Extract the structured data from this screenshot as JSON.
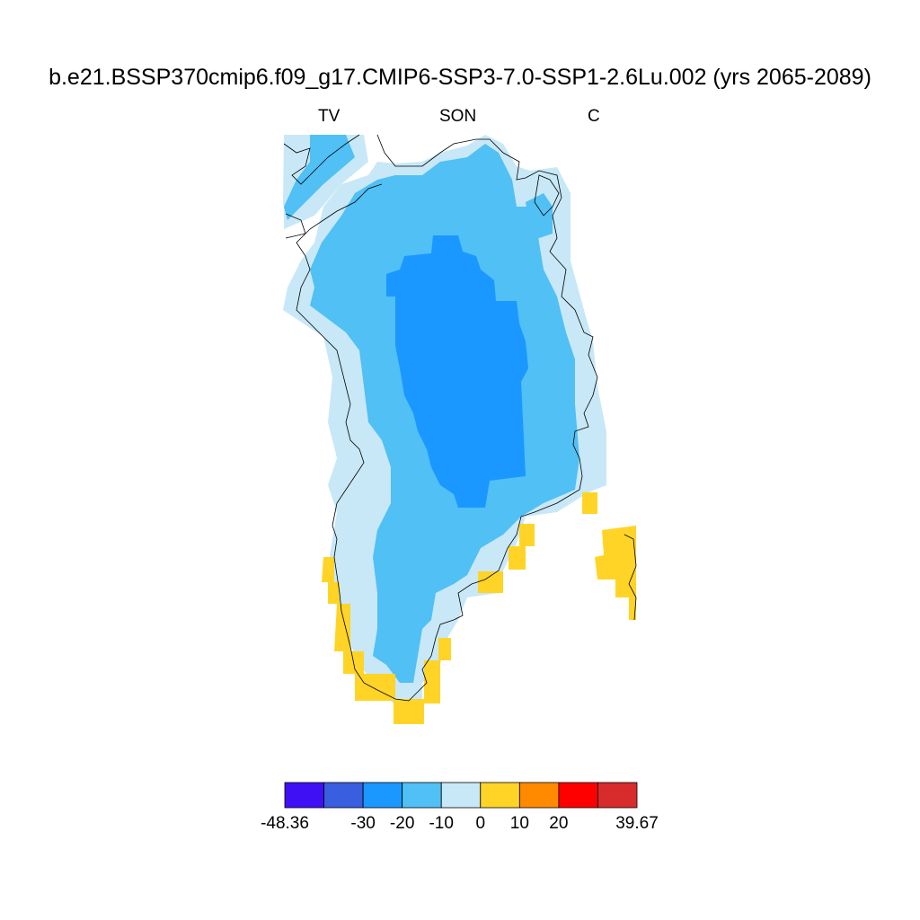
{
  "title": "b.e21.BSSP370cmip6.f09_g17.CMIP6-SSP3-7.0-SSP1-2.6Lu.002 (yrs 2065-2089)",
  "subtitles": {
    "left": "TV",
    "center": "SON",
    "right": "C"
  },
  "colorbar": {
    "colors": [
      "#4010f5",
      "#3a5ee0",
      "#1a98ff",
      "#50c0f5",
      "#c8e8f7",
      "#ffd426",
      "#ff8a00",
      "#ff0000",
      "#d82c2c"
    ],
    "labels": [
      "-48.36",
      "-30",
      "-20",
      "-10",
      "0",
      "10",
      "20",
      "39.67"
    ]
  },
  "map": {
    "region": "Greenland",
    "fill_colors": {
      "lt0_10": "#c8e8f7",
      "lt10_20": "#50c0f5",
      "lt20_30": "#1a98ff",
      "gt0_10": "#ffd426"
    }
  }
}
